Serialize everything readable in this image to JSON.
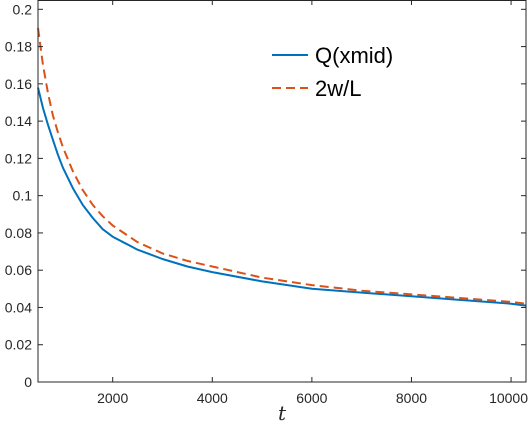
{
  "chart_data": {
    "type": "line",
    "xlabel": "t",
    "ylabel": "",
    "xlim": [
      500,
      10300
    ],
    "ylim": [
      0,
      0.205
    ],
    "xticks": [
      2000,
      4000,
      6000,
      8000,
      10000
    ],
    "xtick_labels": [
      "2000",
      "4000",
      "6000",
      "8000",
      "10000"
    ],
    "yticks": [
      0,
      0.02,
      0.04,
      0.06,
      0.08,
      0.1,
      0.12,
      0.14,
      0.16,
      0.18,
      0.2
    ],
    "ytick_labels": [
      "0",
      "0.02",
      "0.04",
      "0.06",
      "0.08",
      "0.1",
      "0.12",
      "0.14",
      "0.16",
      "0.18",
      "0.2"
    ],
    "grid": false,
    "legend_position": "top-right",
    "series": [
      {
        "name": "Q(xmid)",
        "color": "#0072BD",
        "line_style": "solid",
        "x": [
          500,
          600,
          700,
          800,
          900,
          1000,
          1200,
          1400,
          1600,
          1800,
          2000,
          2500,
          3000,
          3500,
          4000,
          5000,
          6000,
          7000,
          8000,
          9000,
          10000,
          10300
        ],
        "y": [
          0.158,
          0.147,
          0.138,
          0.13,
          0.122,
          0.115,
          0.104,
          0.095,
          0.088,
          0.082,
          0.078,
          0.071,
          0.066,
          0.062,
          0.059,
          0.054,
          0.05,
          0.048,
          0.046,
          0.044,
          0.042,
          0.041
        ]
      },
      {
        "name": "2w/L",
        "color": "#D95319",
        "line_style": "dashed",
        "x": [
          500,
          600,
          700,
          800,
          900,
          1000,
          1200,
          1400,
          1600,
          1800,
          2000,
          2500,
          3000,
          3500,
          4000,
          5000,
          6000,
          7000,
          8000,
          9000,
          10000,
          10300
        ],
        "y": [
          0.19,
          0.17,
          0.155,
          0.143,
          0.134,
          0.126,
          0.113,
          0.103,
          0.095,
          0.089,
          0.084,
          0.075,
          0.069,
          0.065,
          0.062,
          0.056,
          0.052,
          0.049,
          0.047,
          0.045,
          0.043,
          0.042
        ]
      }
    ]
  }
}
